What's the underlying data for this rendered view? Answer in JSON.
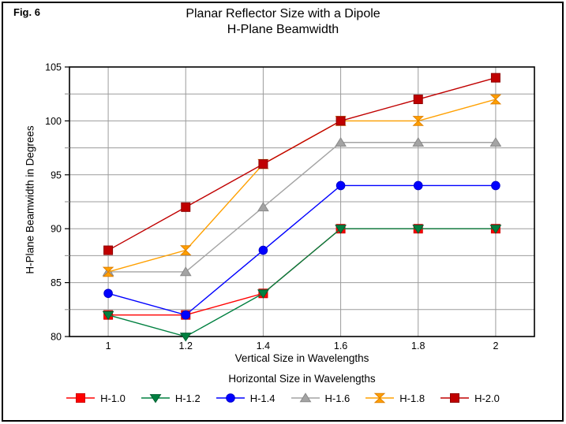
{
  "figure_label": "Fig. 6",
  "title": {
    "line1": "Planar Reflector Size with a Dipole",
    "line2": "H-Plane Beamwidth"
  },
  "chart_data": {
    "type": "line",
    "title": "Planar Reflector Size with a Dipole — H-Plane Beamwidth",
    "xlabel": "Vertical Size in Wavelengths",
    "ylabel": "H-Plane Beamwidth in Degrees",
    "legend_title": "Horizontal Size in Wavelengths",
    "legend_position": "bottom",
    "grid": true,
    "gridline_color": "#9c9c9c",
    "axis_color": "#000000",
    "x": [
      1,
      1.2,
      1.4,
      1.6,
      1.8,
      2
    ],
    "x_tick_labels": [
      "1",
      "1.2",
      "1.4",
      "1.6",
      "1.8",
      "2"
    ],
    "xlim": [
      0.9,
      2.1
    ],
    "ylim": [
      80,
      105
    ],
    "y_major_ticks": [
      80,
      85,
      90,
      95,
      100,
      105
    ],
    "y_tick_labels": [
      "80",
      "85",
      "90",
      "95",
      "100",
      "105"
    ],
    "y_grid_interval": 2.5,
    "series": [
      {
        "name": "H-1.0",
        "color": "#ff0000",
        "edge": "#d00000",
        "marker": "square",
        "values": [
          82,
          82,
          84,
          90,
          90,
          90
        ]
      },
      {
        "name": "H-1.2",
        "color": "#008040",
        "edge": "#006030",
        "marker": "triangle-down",
        "values": [
          82,
          80,
          84,
          90,
          90,
          90
        ]
      },
      {
        "name": "H-1.4",
        "color": "#0000ff",
        "edge": "#0000d0",
        "marker": "circle",
        "values": [
          84,
          82,
          88,
          94,
          94,
          94
        ]
      },
      {
        "name": "H-1.6",
        "color": "#a3a3a3",
        "edge": "#8a8a8a",
        "marker": "triangle-up",
        "values": [
          86,
          86,
          92,
          98,
          98,
          98
        ]
      },
      {
        "name": "H-1.8",
        "color": "#ffa000",
        "edge": "#e08000",
        "marker": "hourglass",
        "values": [
          86,
          88,
          96,
          100,
          100,
          102
        ]
      },
      {
        "name": "H-2.0",
        "color": "#c00000",
        "edge": "#8f0000",
        "marker": "square",
        "values": [
          88,
          92,
          96,
          100,
          102,
          104
        ]
      }
    ]
  }
}
